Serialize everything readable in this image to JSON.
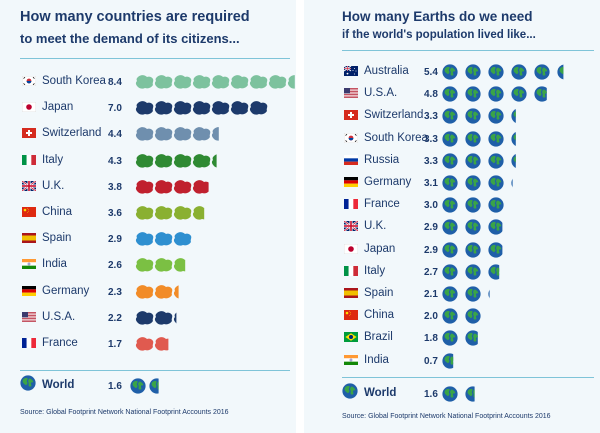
{
  "left": {
    "title": "How many countries are required",
    "subtitle": "to meet the demand of its citizens...",
    "source": "Source: Global Footprint Network National Footprint Accounts 2016",
    "world": {
      "label": "World",
      "value_label": "1.6",
      "value": 1.6
    },
    "chart_data": {
      "type": "bar",
      "title": "How many countries are required to meet the demand of its citizens...",
      "categories": [
        "South Korea",
        "Japan",
        "Switzerland",
        "Italy",
        "U.K.",
        "China",
        "Spain",
        "India",
        "Germany",
        "U.S.A.",
        "France"
      ],
      "value_labels": [
        "8.4",
        "7.0",
        "4.4",
        "4.3",
        "3.8",
        "3.6",
        "2.9",
        "2.6",
        "2.3",
        "2.2",
        "1.7"
      ],
      "values": [
        8.4,
        7.0,
        4.4,
        4.3,
        3.8,
        3.6,
        2.9,
        2.6,
        2.3,
        2.2,
        1.7
      ],
      "flags": [
        "kr",
        "jp",
        "ch",
        "it",
        "uk",
        "cn",
        "es",
        "in",
        "de",
        "us",
        "fr"
      ],
      "icon_colors": [
        "#7dc29e",
        "#1d3a6b",
        "#6f8fae",
        "#2f8a33",
        "#c0202e",
        "#8ab031",
        "#2e8fd0",
        "#7bc043",
        "#f28c28",
        "#1d3a6b",
        "#e05a4f"
      ]
    }
  },
  "right": {
    "title": "How many Earths do we need",
    "subtitle": "if the world's population lived like...",
    "source": "Source: Global Footprint Network National Footprint Accounts 2016",
    "world": {
      "label": "World",
      "value_label": "1.6",
      "value": 1.6
    },
    "chart_data": {
      "type": "bar",
      "title": "How many Earths do we need if the world's population lived like...",
      "categories": [
        "Australia",
        "U.S.A.",
        "Switzerland",
        "South Korea",
        "Russia",
        "Germany",
        "France",
        "U.K.",
        "Japan",
        "Italy",
        "Spain",
        "China",
        "Brazil",
        "India"
      ],
      "value_labels": [
        "5.4",
        "4.8",
        "3.3",
        "3.3",
        "3.3",
        "3.1",
        "3.0",
        "2.9",
        "2.9",
        "2.7",
        "2.1",
        "2.0",
        "1.8",
        "0.7"
      ],
      "values": [
        5.4,
        4.8,
        3.3,
        3.3,
        3.3,
        3.1,
        3.0,
        2.9,
        2.9,
        2.7,
        2.1,
        2.0,
        1.8,
        0.7
      ],
      "flags": [
        "au",
        "us",
        "ch",
        "kr",
        "ru",
        "de",
        "fr",
        "uk",
        "jp",
        "it",
        "es",
        "cn",
        "br",
        "in"
      ]
    }
  },
  "colors": {
    "navy": "#1d3a6b",
    "rule": "#7fc4d8",
    "panel": "#f2f8fb",
    "earth_land": "#3aa447",
    "earth_sea": "#1f5fa8"
  }
}
